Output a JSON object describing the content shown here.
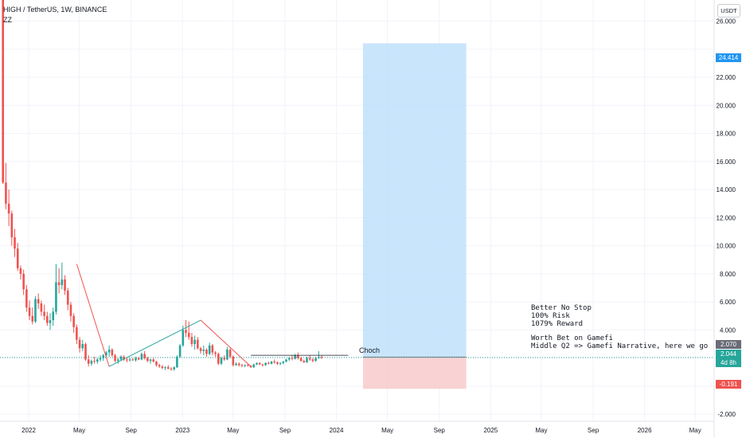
{
  "header": {
    "symbol": "HIGH / TetherUS, 1W, BINANCE",
    "indicator": "ZZ"
  },
  "toolbar": {
    "currency_button": "USDT"
  },
  "price_tags": {
    "target": "24.414",
    "last_close": "2.070",
    "current": "2.044",
    "countdown": "4d 8h",
    "stop": "-0.191"
  },
  "annotations": {
    "choch": "Choch",
    "note_lines": [
      "Better No Stop",
      "100% Risk",
      "1079% Reward",
      "",
      "Worth Bet on Gamefi",
      "Middle Q2 => Gamefi Narrative, here we go"
    ]
  },
  "colors": {
    "up": "#26a69a",
    "down": "#ef5350",
    "target_zone": "#bbdefb",
    "stop_zone": "#f8c8c8",
    "target_tag": "#2196f3",
    "stop_tag": "#ef5350",
    "last_tag": "#6a6d78",
    "current_tag": "#26a69a"
  },
  "chart_data": {
    "type": "candlestick",
    "title": "HIGH / TetherUS, 1W, BINANCE",
    "ylim": [
      -2.5,
      27.5
    ],
    "xlim": [
      "2021-10-25",
      "2026-06-15"
    ],
    "y_ticks": [
      -2.0,
      0,
      2.0,
      4.0,
      6.0,
      8.0,
      10.0,
      12.0,
      14.0,
      16.0,
      18.0,
      20.0,
      22.0,
      24.0,
      26.0
    ],
    "y_tick_labels": [
      "-2.000",
      "",
      "",
      "4.000",
      "6.000",
      "8.000",
      "10.000",
      "12.000",
      "14.000",
      "16.000",
      "18.000",
      "20.000",
      "22.000",
      "",
      "26.000"
    ],
    "x_ticks": [
      {
        "date": "2022-01-01",
        "label": "2022"
      },
      {
        "date": "2022-05-01",
        "label": "May"
      },
      {
        "date": "2022-09-01",
        "label": "Sep"
      },
      {
        "date": "2023-01-01",
        "label": "2023"
      },
      {
        "date": "2023-05-01",
        "label": "May"
      },
      {
        "date": "2023-09-01",
        "label": "Sep"
      },
      {
        "date": "2024-01-01",
        "label": "2024"
      },
      {
        "date": "2024-05-01",
        "label": "May"
      },
      {
        "date": "2024-09-01",
        "label": "Sep"
      },
      {
        "date": "2025-01-01",
        "label": "2025"
      },
      {
        "date": "2025-05-01",
        "label": "May"
      },
      {
        "date": "2025-09-01",
        "label": "Sep"
      },
      {
        "date": "2026-01-01",
        "label": "2026"
      },
      {
        "date": "2026-05-01",
        "label": "May"
      }
    ],
    "first_candle": "2021-11-01",
    "candles": [
      [
        29.0,
        29.0,
        14.4,
        14.5
      ],
      [
        14.5,
        15.9,
        12.6,
        13.0
      ],
      [
        13.0,
        14.0,
        11.4,
        12.3
      ],
      [
        12.3,
        12.5,
        10.0,
        10.6
      ],
      [
        10.6,
        11.2,
        9.2,
        9.8
      ],
      [
        9.8,
        10.2,
        8.2,
        8.4
      ],
      [
        8.4,
        8.6,
        7.6,
        8.0
      ],
      [
        8.0,
        8.3,
        6.5,
        6.9
      ],
      [
        6.9,
        7.2,
        5.3,
        5.6
      ],
      [
        5.6,
        6.1,
        4.7,
        5.0
      ],
      [
        5.0,
        5.6,
        4.4,
        4.6
      ],
      [
        4.6,
        6.4,
        4.5,
        6.2
      ],
      [
        6.2,
        6.6,
        5.5,
        5.9
      ],
      [
        5.9,
        6.1,
        5.0,
        5.3
      ],
      [
        5.3,
        5.8,
        4.7,
        5.0
      ],
      [
        5.0,
        5.3,
        4.3,
        4.5
      ],
      [
        4.5,
        5.2,
        4.0,
        4.7
      ],
      [
        4.7,
        5.6,
        4.3,
        5.3
      ],
      [
        5.3,
        8.7,
        5.1,
        7.4
      ],
      [
        7.4,
        8.4,
        6.6,
        7.2
      ],
      [
        7.2,
        8.8,
        6.9,
        7.6
      ],
      [
        7.6,
        7.9,
        6.5,
        6.8
      ],
      [
        6.8,
        7.0,
        5.4,
        5.8
      ],
      [
        5.8,
        6.0,
        4.6,
        5.0
      ],
      [
        5.0,
        5.2,
        3.8,
        4.2
      ],
      [
        4.2,
        4.4,
        3.0,
        3.3
      ],
      [
        3.3,
        3.5,
        2.4,
        2.7
      ],
      [
        2.7,
        3.3,
        2.5,
        3.0
      ],
      [
        3.0,
        3.1,
        1.8,
        1.9
      ],
      [
        1.9,
        2.2,
        1.4,
        1.6
      ],
      [
        1.6,
        1.9,
        1.45,
        1.8
      ],
      [
        1.8,
        2.1,
        1.6,
        1.75
      ],
      [
        1.75,
        2.0,
        1.6,
        1.9
      ],
      [
        1.9,
        2.2,
        1.75,
        2.0
      ],
      [
        2.0,
        2.3,
        1.8,
        2.2
      ],
      [
        2.2,
        2.5,
        2.0,
        2.4
      ],
      [
        2.4,
        2.9,
        2.1,
        2.6
      ],
      [
        2.6,
        2.7,
        2.1,
        2.2
      ],
      [
        2.2,
        2.3,
        1.7,
        1.8
      ],
      [
        1.8,
        2.0,
        1.6,
        1.9
      ],
      [
        1.9,
        2.2,
        1.8,
        2.1
      ],
      [
        2.1,
        2.2,
        1.8,
        1.9
      ],
      [
        1.9,
        2.0,
        1.7,
        1.85
      ],
      [
        1.85,
        2.0,
        1.75,
        1.9
      ],
      [
        1.9,
        2.0,
        1.8,
        1.85
      ],
      [
        1.85,
        2.1,
        1.75,
        2.0
      ],
      [
        2.0,
        2.1,
        1.85,
        1.9
      ],
      [
        1.9,
        2.4,
        1.85,
        2.3
      ],
      [
        2.3,
        2.5,
        1.9,
        2.0
      ],
      [
        2.0,
        2.1,
        1.7,
        1.8
      ],
      [
        1.8,
        1.95,
        1.6,
        1.9
      ],
      [
        1.9,
        2.0,
        1.7,
        1.75
      ],
      [
        1.75,
        1.8,
        1.4,
        1.5
      ],
      [
        1.5,
        1.6,
        1.3,
        1.4
      ],
      [
        1.4,
        1.5,
        1.2,
        1.3
      ],
      [
        1.3,
        1.4,
        1.15,
        1.35
      ],
      [
        1.35,
        1.5,
        1.2,
        1.25
      ],
      [
        1.25,
        1.35,
        1.1,
        1.2
      ],
      [
        1.2,
        1.4,
        1.1,
        1.35
      ],
      [
        1.35,
        2.2,
        1.3,
        2.1
      ],
      [
        2.1,
        3.0,
        2.0,
        2.9
      ],
      [
        2.9,
        4.3,
        2.8,
        4.0
      ],
      [
        4.0,
        4.7,
        3.5,
        3.8
      ],
      [
        3.8,
        4.6,
        3.3,
        3.5
      ],
      [
        3.5,
        3.8,
        2.8,
        3.0
      ],
      [
        3.0,
        3.6,
        2.6,
        3.3
      ],
      [
        3.3,
        3.5,
        2.6,
        2.7
      ],
      [
        2.7,
        2.8,
        2.3,
        2.5
      ],
      [
        2.5,
        2.9,
        2.2,
        2.6
      ],
      [
        2.6,
        2.7,
        2.1,
        2.3
      ],
      [
        2.3,
        3.1,
        2.2,
        2.9
      ],
      [
        2.9,
        3.0,
        2.2,
        2.4
      ],
      [
        2.4,
        2.5,
        2.1,
        2.3
      ],
      [
        2.3,
        2.4,
        1.5,
        1.6
      ],
      [
        1.6,
        2.1,
        1.5,
        2.0
      ],
      [
        2.0,
        2.2,
        1.8,
        1.9
      ],
      [
        1.9,
        2.8,
        1.85,
        2.6
      ],
      [
        2.6,
        2.7,
        2.0,
        2.1
      ],
      [
        2.1,
        2.2,
        1.4,
        1.5
      ],
      [
        1.5,
        1.7,
        1.45,
        1.6
      ],
      [
        1.6,
        1.7,
        1.4,
        1.5
      ],
      [
        1.5,
        1.6,
        1.35,
        1.45
      ],
      [
        1.45,
        1.55,
        1.35,
        1.5
      ],
      [
        1.5,
        1.6,
        1.4,
        1.45
      ],
      [
        1.45,
        1.5,
        1.3,
        1.35
      ],
      [
        1.35,
        1.6,
        1.3,
        1.55
      ],
      [
        1.55,
        1.7,
        1.5,
        1.65
      ],
      [
        1.65,
        1.7,
        1.5,
        1.55
      ],
      [
        1.55,
        1.6,
        1.4,
        1.5
      ],
      [
        1.5,
        1.7,
        1.45,
        1.65
      ],
      [
        1.65,
        1.75,
        1.55,
        1.6
      ],
      [
        1.6,
        1.8,
        1.55,
        1.75
      ],
      [
        1.75,
        1.9,
        1.6,
        1.7
      ],
      [
        1.7,
        1.75,
        1.5,
        1.6
      ],
      [
        1.6,
        1.7,
        1.5,
        1.65
      ],
      [
        1.65,
        1.8,
        1.55,
        1.75
      ],
      [
        1.75,
        1.95,
        1.7,
        1.9
      ],
      [
        1.9,
        2.1,
        1.8,
        2.0
      ],
      [
        2.0,
        2.2,
        1.85,
        1.95
      ],
      [
        1.95,
        2.3,
        1.9,
        2.2
      ],
      [
        2.2,
        2.4,
        1.9,
        2.0
      ],
      [
        2.0,
        2.1,
        1.75,
        1.8
      ],
      [
        1.8,
        1.9,
        1.65,
        1.7
      ],
      [
        1.7,
        2.1,
        1.65,
        2.0
      ],
      [
        2.0,
        2.2,
        1.8,
        1.9
      ],
      [
        1.9,
        2.0,
        1.7,
        1.8
      ],
      [
        1.8,
        2.1,
        1.75,
        2.0
      ],
      [
        2.0,
        2.5,
        1.95,
        2.07
      ],
      [
        2.07,
        2.2,
        1.95,
        2.044
      ]
    ],
    "zigzag": [
      {
        "date": "2022-04-25",
        "price": 8.7
      },
      {
        "date": "2022-07-11",
        "price": 1.4
      },
      {
        "date": "2023-02-13",
        "price": 4.7
      },
      {
        "date": "2023-06-12",
        "price": 1.4
      }
    ],
    "choch_level": {
      "from": "2023-06-12",
      "to": "2024-01-29",
      "price": 2.2
    },
    "position": {
      "start": "2024-03-04",
      "end": "2024-11-04",
      "entry": 2.07,
      "target": 24.414,
      "stop": -0.191
    },
    "last_price": 2.044
  }
}
